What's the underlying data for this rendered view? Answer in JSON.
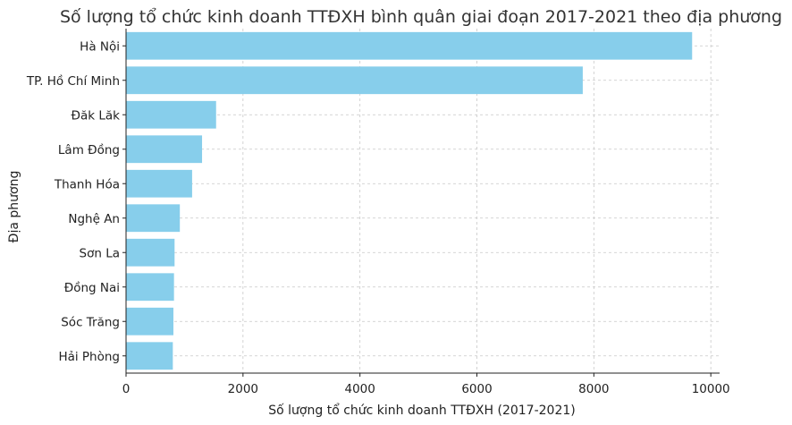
{
  "chart_data": {
    "type": "bar",
    "orientation": "horizontal",
    "title": "Số lượng tổ chức kinh doanh TTĐXH bình quân giai đoạn 2017-2021 theo địa phương",
    "xlabel": "Số lượng tổ chức kinh doanh TTĐXH (2017-2021)",
    "ylabel": "Địa phương",
    "xlim": [
      0,
      10150
    ],
    "xticks": [
      0,
      2000,
      4000,
      6000,
      8000,
      10000
    ],
    "grid": true,
    "bar_color": "#87ceeb",
    "categories": [
      "Hà Nội",
      "TP. Hồ Chí Minh",
      "Đăk Lăk",
      "Lâm Đồng",
      "Thanh Hóa",
      "Nghệ An",
      "Sơn La",
      "Đồng Nai",
      "Sóc Trăng",
      "Hải Phòng"
    ],
    "values": [
      9680,
      7810,
      1540,
      1300,
      1130,
      920,
      830,
      820,
      810,
      800
    ]
  }
}
